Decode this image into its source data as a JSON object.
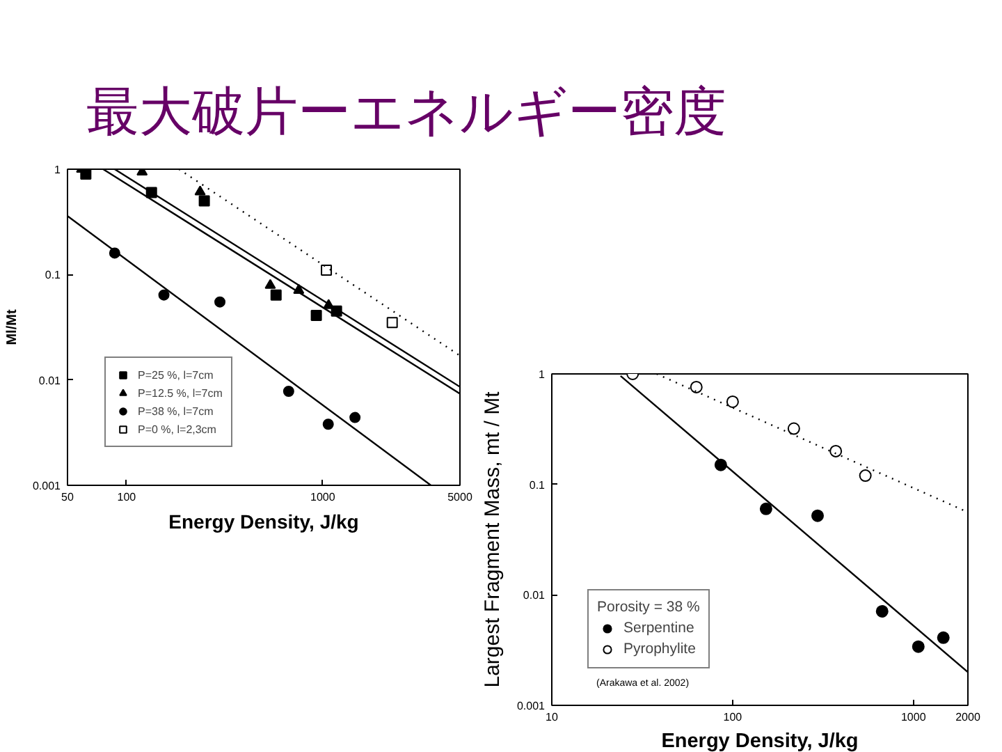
{
  "chart_data": [
    {
      "type": "scatter",
      "title": "最大破片ーエネルギー密度",
      "xlabel": "Energy Density, J/kg",
      "ylabel": "Ml/Mt",
      "log": "xy",
      "xlim": [
        50,
        5000
      ],
      "ylim": [
        0.001,
        1
      ],
      "xticks": [
        50,
        100,
        1000,
        5000
      ],
      "yticks": [
        0.001,
        0.01,
        0.1,
        1
      ],
      "legend": "bottom left",
      "series": [
        {
          "name": "P=25 %, l=7cm",
          "marker": "square",
          "color": "#000000",
          "x": [
            62,
            134,
            249,
            578,
            927,
            1175
          ],
          "values": [
            0.9,
            0.6,
            0.5,
            0.064,
            0.041,
            0.045
          ]
        },
        {
          "name": "P=12.5 %, l=7cm",
          "marker": "triangle",
          "color": "#000000",
          "x": [
            59,
            120,
            237,
            540,
            754,
            1071
          ],
          "values": [
            1.0,
            0.94,
            0.61,
            0.079,
            0.071,
            0.051
          ]
        },
        {
          "name": "P=38 %, l=7cm",
          "marker": "circle",
          "color": "#000000",
          "x": [
            87,
            155,
            299,
            670,
            1066,
            1459
          ],
          "values": [
            0.16,
            0.064,
            0.055,
            0.0078,
            0.0038,
            0.0044
          ]
        },
        {
          "name": "P=0 %, l=2,3cm",
          "marker": "square",
          "color": "#ffffff",
          "x": [
            1043,
            2259
          ],
          "values": [
            0.11,
            0.035
          ]
        },
        {
          "type": "line",
          "line_style": "solid",
          "color": "#000000",
          "x": [
            50,
            3555
          ],
          "values": [
            0.36,
            0.001
          ]
        },
        {
          "type": "line",
          "line_style": "solid",
          "color": "#000000",
          "x": [
            87,
            5000
          ],
          "values": [
            1,
            0.0086
          ]
        },
        {
          "type": "line",
          "line_style": "solid",
          "color": "#000000",
          "x": [
            76,
            5000
          ],
          "values": [
            1,
            0.0074
          ]
        },
        {
          "type": "line",
          "line_style": "dotted",
          "color": "#000000",
          "x": [
            185,
            5000
          ],
          "values": [
            1,
            0.017
          ]
        }
      ]
    },
    {
      "type": "scatter",
      "xlabel": "Energy Density, J/kg",
      "ylabel": "Largest Fragment Mass, mt / Mt",
      "log": "xy",
      "xlim": [
        10,
        2000
      ],
      "ylim": [
        0.001,
        1
      ],
      "xticks": [
        10,
        100,
        1000,
        2000
      ],
      "yticks": [
        0.001,
        0.01,
        0.1,
        1
      ],
      "legend": "bottom left",
      "legend_title": "Porosity = 38 %",
      "annotations": [
        "(Arakawa et al. 2002)"
      ],
      "series": [
        {
          "name": "Serpentine",
          "marker": "circle",
          "color": "#000000",
          "x": [
            86,
            153,
            295,
            671,
            1064,
            1463
          ],
          "values": [
            0.15,
            0.06,
            0.052,
            0.0071,
            0.0034,
            0.0041
          ]
        },
        {
          "name": "Pyrophylite",
          "marker": "circle",
          "color": "#ffffff",
          "x": [
            28,
            63,
            100,
            218,
            372,
            542
          ],
          "values": [
            1.0,
            0.76,
            0.56,
            0.32,
            0.2,
            0.12
          ]
        },
        {
          "type": "line",
          "line_style": "solid",
          "color": "#000000",
          "x": [
            24,
            2000
          ],
          "values": [
            0.96,
            0.002
          ]
        },
        {
          "type": "line",
          "line_style": "dotted",
          "color": "#000000",
          "x": [
            38,
            2000
          ],
          "values": [
            1,
            0.056
          ]
        }
      ]
    }
  ]
}
